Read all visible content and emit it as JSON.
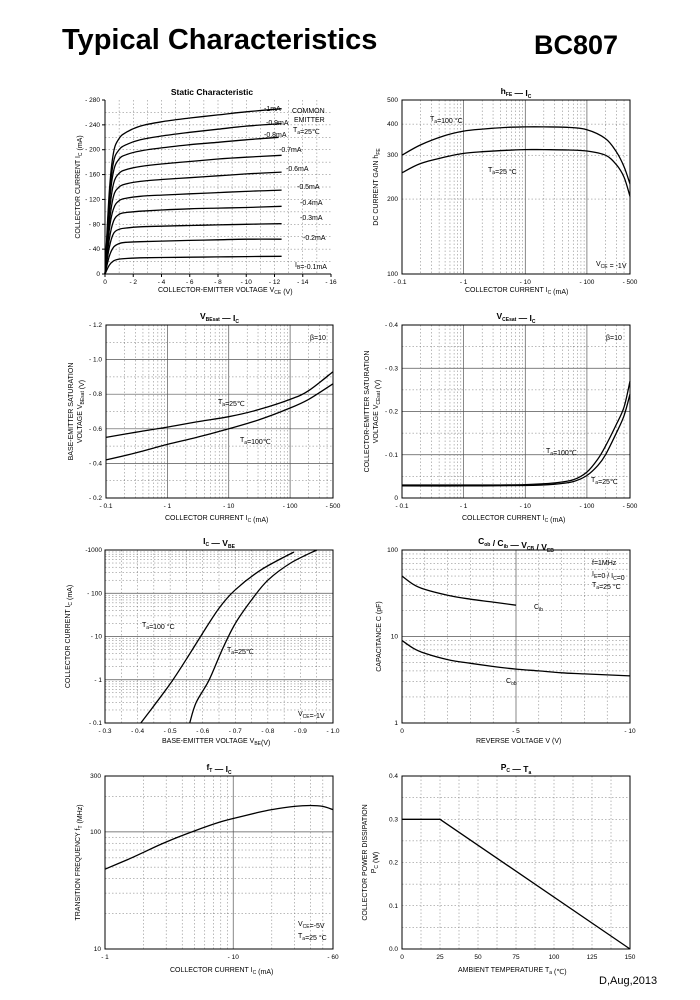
{
  "header": {
    "title": "Typical Characteristics",
    "part_number": "BC807"
  },
  "footer": {
    "date": "D,Aug,2013"
  },
  "chart_data": [
    {
      "id": "static",
      "type": "line",
      "title": "Static Characteristic",
      "xlabel": "COLLECTOR-EMITTER VOLTAGE   VCE   (V)",
      "ylabel": "COLLECTOR CURRENT   IC   (mA)",
      "xscale": "linear",
      "yscale": "linear",
      "xlim": [
        0,
        -16
      ],
      "ylim": [
        0,
        -280
      ],
      "xticks": [
        0,
        -2,
        -4,
        -6,
        -8,
        -10,
        -12,
        -14,
        -16
      ],
      "xtick_labels": [
        "0",
        "- 2",
        "- 4",
        "- 6",
        "- 8",
        "- 10",
        "- 12",
        "- 14",
        "- 16"
      ],
      "yticks": [
        0,
        -40,
        -80,
        -120,
        -160,
        -200,
        -240,
        -280
      ],
      "ytick_labels": [
        "0",
        "- 40",
        "- 80",
        "- 120",
        "- 160",
        "- 200",
        "- 240",
        "- 280"
      ],
      "series": [
        {
          "name": "-1mA",
          "x": [
            0,
            -0.3,
            -0.6,
            -1.0,
            -1.5,
            -2.5,
            -4,
            -6,
            -8,
            -10,
            -12.5
          ],
          "y": [
            0,
            -130,
            -195,
            -218,
            -228,
            -238,
            -245,
            -251,
            -256,
            -261,
            -266
          ]
        },
        {
          "name": "-0.9mA",
          "x": [
            0,
            -0.3,
            -0.6,
            -1.0,
            -1.5,
            -2.5,
            -4,
            -6,
            -8,
            -10,
            -12.5
          ],
          "y": [
            0,
            -120,
            -180,
            -200,
            -208,
            -216,
            -222,
            -228,
            -233,
            -238,
            -242
          ]
        },
        {
          "name": "-0.8mA",
          "x": [
            0,
            -0.3,
            -0.6,
            -1.0,
            -1.5,
            -2.5,
            -4,
            -6,
            -8,
            -10,
            -12.3
          ],
          "y": [
            0,
            -110,
            -165,
            -185,
            -192,
            -198,
            -203,
            -208,
            -212,
            -216,
            -220
          ]
        },
        {
          "name": "-0.7mA",
          "x": [
            0,
            -0.3,
            -0.6,
            -1.0,
            -1.5,
            -2.5,
            -4,
            -6,
            -8,
            -10,
            -12.5
          ],
          "y": [
            0,
            -95,
            -145,
            -162,
            -168,
            -173,
            -177,
            -181,
            -185,
            -188,
            -191
          ]
        },
        {
          "name": "-0.6mA",
          "x": [
            0,
            -0.3,
            -0.6,
            -1.0,
            -1.5,
            -2.5,
            -4,
            -6,
            -8,
            -10,
            -12.5
          ],
          "y": [
            0,
            -80,
            -125,
            -140,
            -145,
            -149,
            -152,
            -155,
            -158,
            -161,
            -164
          ]
        },
        {
          "name": "-0.5mA",
          "x": [
            0,
            -0.3,
            -0.6,
            -1.0,
            -1.5,
            -2.5,
            -4,
            -6,
            -8,
            -10,
            -12.5
          ],
          "y": [
            0,
            -70,
            -105,
            -118,
            -122,
            -125,
            -127,
            -129,
            -131,
            -133,
            -135
          ]
        },
        {
          "name": "-0.4mA",
          "x": [
            0,
            -0.3,
            -0.6,
            -1.0,
            -1.5,
            -2.5,
            -4,
            -6,
            -8,
            -10,
            -12.5
          ],
          "y": [
            0,
            -55,
            -85,
            -96,
            -99,
            -101,
            -103,
            -105,
            -106,
            -107,
            -109
          ]
        },
        {
          "name": "-0.3mA",
          "x": [
            0,
            -0.3,
            -0.6,
            -1.0,
            -1.5,
            -2.5,
            -4,
            -6,
            -8,
            -10,
            -12.5
          ],
          "y": [
            0,
            -42,
            -65,
            -72,
            -74,
            -76,
            -77,
            -78,
            -79,
            -80,
            -81
          ]
        },
        {
          "name": "-0.2mA",
          "x": [
            0,
            -0.3,
            -0.6,
            -1.0,
            -1.5,
            -2.5,
            -4,
            -6,
            -8,
            -10,
            -12.5
          ],
          "y": [
            0,
            -28,
            -43,
            -49,
            -51,
            -52,
            -53,
            -54,
            -55,
            -56,
            -56
          ]
        },
        {
          "name": "IB=-0.1mA",
          "x": [
            0,
            -0.3,
            -0.6,
            -1.0,
            -1.5,
            -2.5,
            -4,
            -6,
            -8,
            -10,
            -12.5
          ],
          "y": [
            0,
            -14,
            -21,
            -24,
            -25,
            -26,
            -26.5,
            -27,
            -27.5,
            -28,
            -28.5
          ]
        }
      ],
      "annotations": [
        "COMMON",
        "EMITTER",
        "Ta=25℃"
      ]
    },
    {
      "id": "hfe",
      "type": "line",
      "title": "hFE — IC",
      "xlabel": "COLLECTOR CURRENT   IC   (mA)",
      "ylabel": "DC CURRENT GAIN   hFE",
      "xscale": "log",
      "yscale": "log",
      "xlim": [
        -0.1,
        -500
      ],
      "ylim": [
        100,
        500
      ],
      "xtick_labels": [
        "- 1",
        "- 10",
        "- 100",
        "- 500"
      ],
      "ytick_labels": [
        "100",
        "200",
        "300",
        "400",
        "500"
      ],
      "series": [
        {
          "name": "Ta=100 °C",
          "x": [
            -0.1,
            -0.2,
            -0.5,
            -1,
            -2,
            -5,
            -10,
            -20,
            -50,
            -100,
            -200,
            -300,
            -400,
            -500
          ],
          "y": [
            300,
            330,
            360,
            375,
            382,
            388,
            390,
            390,
            388,
            380,
            350,
            310,
            270,
            230
          ]
        },
        {
          "name": "Ta=25 °C",
          "x": [
            -0.1,
            -0.2,
            -0.5,
            -1,
            -2,
            -5,
            -10,
            -20,
            -50,
            -100,
            -200,
            -300,
            -400,
            -500
          ],
          "y": [
            255,
            278,
            295,
            305,
            310,
            314,
            316,
            316,
            315,
            312,
            300,
            275,
            245,
            205
          ]
        }
      ],
      "annotations": [
        "VCE=-1V"
      ]
    },
    {
      "id": "vbesat",
      "type": "line",
      "title": "VBEsat — IC",
      "xlabel": "COLLECTOR CURRENT   IC   (mA)",
      "ylabel": "BASE-EMITTER SATURATION VOLTAGE   VBEsat   (V)",
      "xscale": "log",
      "yscale": "linear",
      "xlim": [
        -0.1,
        -500
      ],
      "ylim": [
        -0.2,
        -1.2
      ],
      "xtick_labels": [
        "- 0.1",
        "- 1",
        "- 10",
        "- 100",
        "- 500"
      ],
      "ytick_labels": [
        "- 0.2",
        "- 0.4",
        "- 0.6",
        "- 0.8",
        "- 1.0",
        "- 1.2"
      ],
      "series": [
        {
          "name": "Ta=25℃",
          "x": [
            -0.1,
            -0.3,
            -1,
            -3,
            -10,
            -30,
            -100,
            -200,
            -500
          ],
          "y": [
            -0.55,
            -0.58,
            -0.61,
            -0.64,
            -0.67,
            -0.71,
            -0.77,
            -0.82,
            -0.93
          ]
        },
        {
          "name": "Ta=100℃",
          "x": [
            -0.1,
            -0.3,
            -1,
            -3,
            -10,
            -30,
            -100,
            -200,
            -500
          ],
          "y": [
            -0.42,
            -0.46,
            -0.51,
            -0.55,
            -0.6,
            -0.65,
            -0.72,
            -0.77,
            -0.86
          ]
        }
      ],
      "annotations": [
        "β=10"
      ]
    },
    {
      "id": "vcesat",
      "type": "line",
      "title": "VCEsat — IC",
      "xlabel": "COLLECTOR CURRENT   IC   (mA)",
      "ylabel": "COLLECTOR-EMITTER SATURATION VOLTAGE   VCEsat   (V)",
      "xscale": "log",
      "yscale": "linear",
      "xlim": [
        -0.1,
        -500
      ],
      "ylim": [
        0,
        -0.4
      ],
      "xtick_labels": [
        "- 0.1",
        "- 1",
        "- 10",
        "- 100",
        "- 500"
      ],
      "ytick_labels": [
        "0",
        "- 0.1",
        "- 0.2",
        "- 0.3",
        "- 0.4"
      ],
      "series": [
        {
          "name": "Ta=100℃",
          "x": [
            -0.1,
            -1,
            -10,
            -30,
            -60,
            -100,
            -150,
            -200,
            -300,
            -400,
            -500
          ],
          "y": [
            -0.03,
            -0.03,
            -0.031,
            -0.035,
            -0.042,
            -0.06,
            -0.09,
            -0.12,
            -0.17,
            -0.21,
            -0.27
          ]
        },
        {
          "name": "Ta=25℃",
          "x": [
            -0.1,
            -1,
            -10,
            -30,
            -60,
            -100,
            -150,
            -200,
            -300,
            -400,
            -500
          ],
          "y": [
            -0.028,
            -0.028,
            -0.029,
            -0.032,
            -0.038,
            -0.052,
            -0.075,
            -0.1,
            -0.15,
            -0.19,
            -0.24
          ]
        }
      ],
      "annotations": [
        "β=10"
      ]
    },
    {
      "id": "icvbe",
      "type": "line",
      "title": "IC — VBE",
      "xlabel": "BASE-EMITTER VOLTAGE   VBE(V)",
      "ylabel": "COLLECTOR CURRENT   IC   (mA)",
      "xscale": "linear",
      "yscale": "log",
      "xlim": [
        -0.3,
        -1.0
      ],
      "ylim": [
        -0.1,
        -1000
      ],
      "xtick_labels": [
        "- 0.3",
        "- 0.4",
        "- 0.5",
        "- 0.6",
        "- 0.7",
        "- 0.8",
        "- 0.9",
        "- 1.0"
      ],
      "ytick_labels": [
        "- 0.1",
        "- 1",
        "- 10",
        "- 100",
        "-1000"
      ],
      "series": [
        {
          "name": "Ta=100 °C",
          "x": [
            -0.41,
            -0.45,
            -0.5,
            -0.55,
            -0.6,
            -0.65,
            -0.7,
            -0.78,
            -0.88
          ],
          "y": [
            -0.1,
            -0.25,
            -0.8,
            -3,
            -12,
            -45,
            -120,
            -350,
            -900
          ]
        },
        {
          "name": "Ta=25°C",
          "x": [
            -0.56,
            -0.58,
            -0.62,
            -0.66,
            -0.7,
            -0.75,
            -0.8,
            -0.87,
            -0.95
          ],
          "y": [
            -0.1,
            -0.3,
            -1,
            -5,
            -20,
            -70,
            -200,
            -500,
            -1000
          ]
        }
      ],
      "annotations": [
        "VCE=-1V"
      ]
    },
    {
      "id": "cap",
      "type": "line",
      "title": "Cob / Cib — VCB / VEB",
      "xlabel": "REVERSE  VOLTAGE   V   (V)",
      "ylabel": "CAPACITANCE   C   (pF)",
      "xscale": "linear",
      "yscale": "log",
      "xlim": [
        0,
        -10
      ],
      "ylim": [
        1,
        100
      ],
      "xtick_labels": [
        "0",
        "- 5",
        "- 10"
      ],
      "ytick_labels": [
        "1",
        "10",
        "100"
      ],
      "series": [
        {
          "name": "Cib",
          "x": [
            0,
            -0.5,
            -1,
            -2,
            -3,
            -4,
            -5
          ],
          "y": [
            50,
            40,
            35,
            30,
            27,
            25,
            23
          ]
        },
        {
          "name": "Cob",
          "x": [
            0,
            -0.5,
            -1,
            -2,
            -3,
            -4,
            -5,
            -6,
            -7,
            -8,
            -9,
            -10
          ],
          "y": [
            9,
            7.3,
            6.4,
            5.4,
            4.9,
            4.5,
            4.2,
            4.0,
            3.8,
            3.7,
            3.6,
            3.5
          ]
        }
      ],
      "annotations": [
        "f=1MHz",
        "IE=0 / IC=0",
        "Ta=25 °C"
      ]
    },
    {
      "id": "ft",
      "type": "line",
      "title": "fT — IC",
      "xlabel": "COLLECTOR CURRENT   IC   (mA)",
      "ylabel": "TRANSITION FREQUENCY   fT   (MHz)",
      "xscale": "log",
      "yscale": "log",
      "xlim": [
        -1,
        -60
      ],
      "ylim": [
        10,
        300
      ],
      "xtick_labels": [
        "- 1",
        "- 10",
        "- 60"
      ],
      "ytick_labels": [
        "10",
        "100",
        "300"
      ],
      "series": [
        {
          "name": "fT",
          "x": [
            -1,
            -1.5,
            -2,
            -3,
            -5,
            -8,
            -10,
            -15,
            -20,
            -30,
            -40,
            -50,
            -60
          ],
          "y": [
            48,
            58,
            67,
            82,
            102,
            122,
            130,
            145,
            155,
            165,
            168,
            165,
            155
          ]
        }
      ],
      "annotations": [
        "VCE=-5V",
        "Ta=25 °C"
      ]
    },
    {
      "id": "pc",
      "type": "line",
      "title": "PC — Ta",
      "xlabel": "AMBIENT TEMPERATURE   Ta   (℃)",
      "ylabel": "COLLECTOR POWER DISSIPATION   PC   (W)",
      "xscale": "linear",
      "yscale": "linear",
      "xlim": [
        0,
        150
      ],
      "ylim": [
        0,
        0.4
      ],
      "xtick_labels": [
        "0",
        "25",
        "50",
        "75",
        "100",
        "125",
        "150"
      ],
      "ytick_labels": [
        "0.0",
        "0.1",
        "0.2",
        "0.3",
        "0.4"
      ],
      "series": [
        {
          "name": "PC",
          "x": [
            0,
            25,
            150
          ],
          "y": [
            0.3,
            0.3,
            0
          ]
        }
      ]
    }
  ]
}
